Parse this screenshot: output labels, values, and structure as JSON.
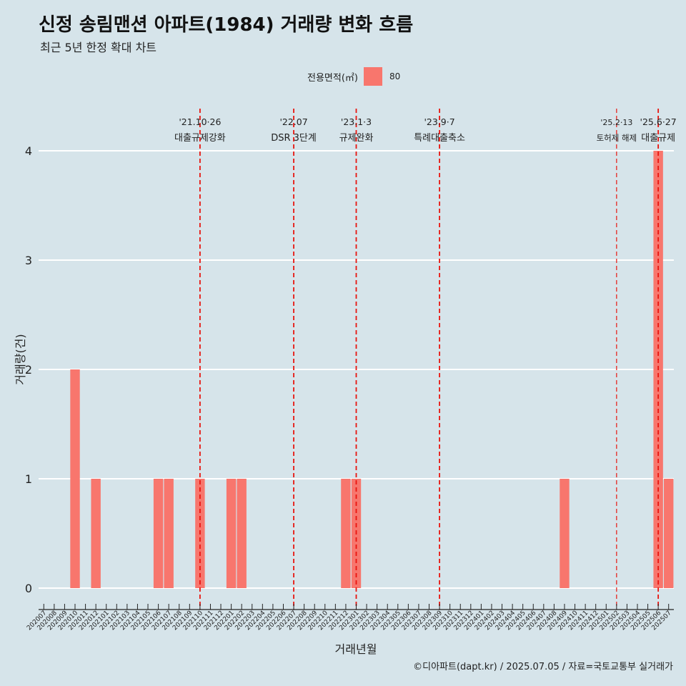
{
  "chart_data": {
    "type": "bar",
    "title": "신정 송림맨션 아파트(1984) 거래량 변화 흐름",
    "subtitle": "최근 5년 한정 확대 차트",
    "xlabel": "거래년월",
    "ylabel": "거래량(건)",
    "ylim": [
      0,
      4
    ],
    "yticks": [
      0,
      1,
      2,
      3,
      4
    ],
    "grid": true,
    "legend": {
      "title": "전용면적(㎡)",
      "position": "top",
      "entries": [
        {
          "label": "80",
          "color": "#f8766d"
        }
      ]
    },
    "categories": [
      "202007",
      "202008",
      "202009",
      "202010",
      "202011",
      "202012",
      "202101",
      "202102",
      "202103",
      "202104",
      "202105",
      "202106",
      "202107",
      "202108",
      "202109",
      "202110",
      "202111",
      "202112",
      "202201",
      "202202",
      "202203",
      "202204",
      "202205",
      "202206",
      "202207",
      "202208",
      "202209",
      "202210",
      "202211",
      "202212",
      "202301",
      "202302",
      "202303",
      "202304",
      "202305",
      "202306",
      "202307",
      "202308",
      "202309",
      "202310",
      "202311",
      "202312",
      "202401",
      "202402",
      "202403",
      "202404",
      "202405",
      "202406",
      "202407",
      "202408",
      "202409",
      "202410",
      "202411",
      "202412",
      "202501",
      "202502",
      "202503",
      "202504",
      "202505",
      "202506",
      "202507"
    ],
    "series": [
      {
        "name": "80",
        "color": "#f8766d",
        "values": [
          0,
          0,
          0,
          2,
          0,
          1,
          0,
          0,
          0,
          0,
          0,
          1,
          1,
          0,
          0,
          1,
          0,
          0,
          1,
          1,
          0,
          0,
          0,
          0,
          0,
          0,
          0,
          0,
          0,
          1,
          1,
          0,
          0,
          0,
          0,
          0,
          0,
          0,
          0,
          0,
          0,
          0,
          0,
          0,
          0,
          0,
          0,
          0,
          0,
          0,
          1,
          0,
          0,
          0,
          0,
          0,
          0,
          0,
          0,
          4,
          1
        ]
      }
    ],
    "annotations": [
      {
        "x": "202110",
        "line1": "'21.10·26",
        "line2": "대출규제강화"
      },
      {
        "x": "202207",
        "line1": "'22.07",
        "line2": "DSR 3단계"
      },
      {
        "x": "202301",
        "line1": "'23.1·3",
        "line2": "규제완화"
      },
      {
        "x": "202309",
        "line1": "'23.9·7",
        "line2": "특례대출축소"
      },
      {
        "x": "202502",
        "line1": "'25.2·13",
        "line2": "토허제 해제"
      },
      {
        "x": "202506",
        "line1": "'25.6·27",
        "line2": "대출규제"
      }
    ]
  },
  "footer": "©디아파트(dapt.kr) / 2025.07.05 / 자료=국토교통부 실거래가"
}
